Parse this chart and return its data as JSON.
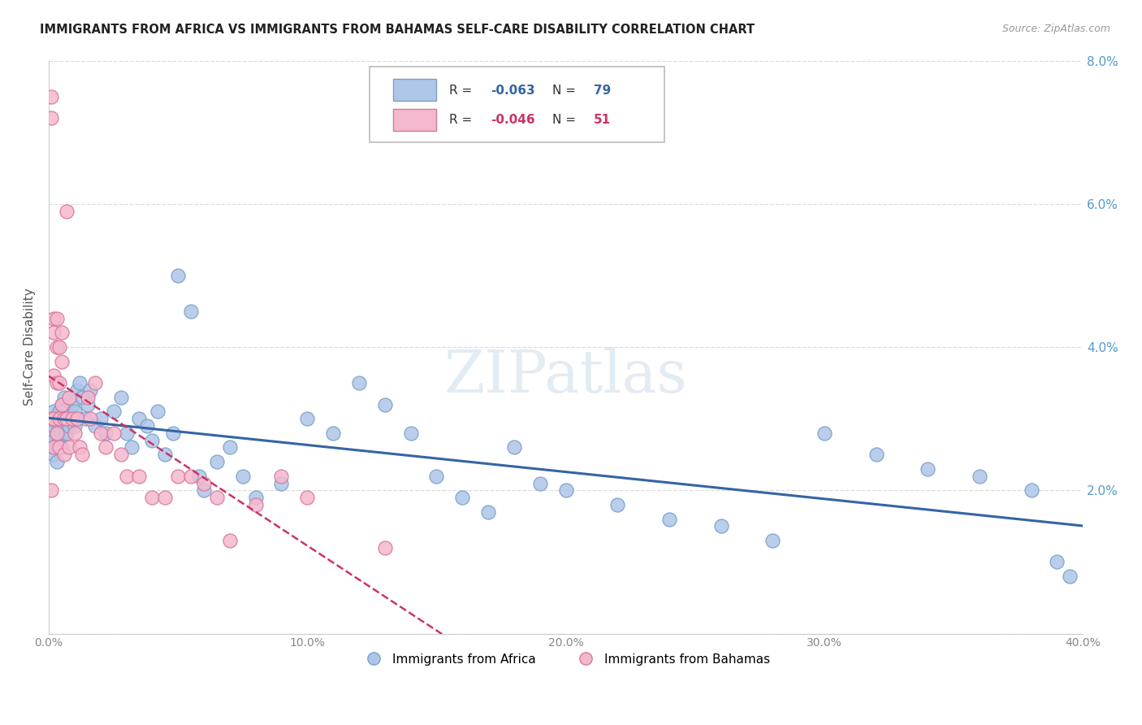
{
  "title": "IMMIGRANTS FROM AFRICA VS IMMIGRANTS FROM BAHAMAS SELF-CARE DISABILITY CORRELATION CHART",
  "source": "Source: ZipAtlas.com",
  "ylabel": "Self-Care Disability",
  "xlim": [
    0.0,
    0.4
  ],
  "ylim": [
    0.0,
    0.08
  ],
  "xticks": [
    0.0,
    0.1,
    0.2,
    0.3,
    0.4
  ],
  "xtick_labels": [
    "0.0%",
    "10.0%",
    "20.0%",
    "30.0%",
    "40.0%"
  ],
  "yticks": [
    0.0,
    0.02,
    0.04,
    0.06,
    0.08
  ],
  "ytick_labels_right": [
    "",
    "2.0%",
    "4.0%",
    "6.0%",
    "8.0%"
  ],
  "africa_fill": "#aec6e8",
  "africa_edge": "#7aa0c8",
  "bahamas_fill": "#f4b8cf",
  "bahamas_edge": "#d87898",
  "africa_line": "#3465a4",
  "bahamas_line": "#cc3366",
  "grid_color": "#dddddd",
  "R_africa": -0.063,
  "N_africa": 79,
  "R_bahamas": -0.046,
  "N_bahamas": 51,
  "legend_label_africa": "Immigrants from Africa",
  "legend_label_bahamas": "Immigrants from Bahamas",
  "africa_x": [
    0.001,
    0.001,
    0.001,
    0.002,
    0.002,
    0.002,
    0.002,
    0.003,
    0.003,
    0.003,
    0.003,
    0.004,
    0.004,
    0.004,
    0.005,
    0.005,
    0.005,
    0.005,
    0.006,
    0.006,
    0.006,
    0.007,
    0.007,
    0.008,
    0.008,
    0.009,
    0.009,
    0.01,
    0.01,
    0.011,
    0.012,
    0.013,
    0.014,
    0.015,
    0.016,
    0.018,
    0.02,
    0.022,
    0.025,
    0.028,
    0.03,
    0.032,
    0.035,
    0.038,
    0.04,
    0.042,
    0.045,
    0.048,
    0.05,
    0.055,
    0.058,
    0.06,
    0.065,
    0.07,
    0.075,
    0.08,
    0.09,
    0.1,
    0.11,
    0.12,
    0.13,
    0.14,
    0.15,
    0.16,
    0.17,
    0.18,
    0.19,
    0.2,
    0.22,
    0.24,
    0.26,
    0.28,
    0.3,
    0.32,
    0.34,
    0.36,
    0.38,
    0.39,
    0.395
  ],
  "africa_y": [
    0.03,
    0.028,
    0.026,
    0.031,
    0.029,
    0.027,
    0.025,
    0.03,
    0.028,
    0.026,
    0.024,
    0.031,
    0.029,
    0.027,
    0.032,
    0.03,
    0.028,
    0.026,
    0.033,
    0.031,
    0.029,
    0.03,
    0.028,
    0.031,
    0.029,
    0.032,
    0.03,
    0.031,
    0.029,
    0.034,
    0.035,
    0.033,
    0.03,
    0.032,
    0.034,
    0.029,
    0.03,
    0.028,
    0.031,
    0.033,
    0.028,
    0.026,
    0.03,
    0.029,
    0.027,
    0.031,
    0.025,
    0.028,
    0.05,
    0.045,
    0.022,
    0.02,
    0.024,
    0.026,
    0.022,
    0.019,
    0.021,
    0.03,
    0.028,
    0.035,
    0.032,
    0.028,
    0.022,
    0.019,
    0.017,
    0.026,
    0.021,
    0.02,
    0.018,
    0.016,
    0.015,
    0.013,
    0.028,
    0.025,
    0.023,
    0.022,
    0.02,
    0.01,
    0.008
  ],
  "bahamas_x": [
    0.001,
    0.001,
    0.001,
    0.001,
    0.002,
    0.002,
    0.002,
    0.002,
    0.002,
    0.003,
    0.003,
    0.003,
    0.003,
    0.004,
    0.004,
    0.004,
    0.004,
    0.005,
    0.005,
    0.005,
    0.006,
    0.006,
    0.007,
    0.007,
    0.008,
    0.008,
    0.009,
    0.01,
    0.011,
    0.012,
    0.013,
    0.015,
    0.016,
    0.018,
    0.02,
    0.022,
    0.025,
    0.028,
    0.03,
    0.035,
    0.04,
    0.045,
    0.05,
    0.055,
    0.06,
    0.065,
    0.07,
    0.08,
    0.09,
    0.1,
    0.13
  ],
  "bahamas_y": [
    0.075,
    0.072,
    0.03,
    0.02,
    0.044,
    0.042,
    0.036,
    0.03,
    0.026,
    0.044,
    0.04,
    0.035,
    0.028,
    0.04,
    0.035,
    0.03,
    0.026,
    0.042,
    0.038,
    0.032,
    0.03,
    0.025,
    0.059,
    0.03,
    0.033,
    0.026,
    0.03,
    0.028,
    0.03,
    0.026,
    0.025,
    0.033,
    0.03,
    0.035,
    0.028,
    0.026,
    0.028,
    0.025,
    0.022,
    0.022,
    0.019,
    0.019,
    0.022,
    0.022,
    0.021,
    0.019,
    0.013,
    0.018,
    0.022,
    0.019,
    0.012
  ]
}
